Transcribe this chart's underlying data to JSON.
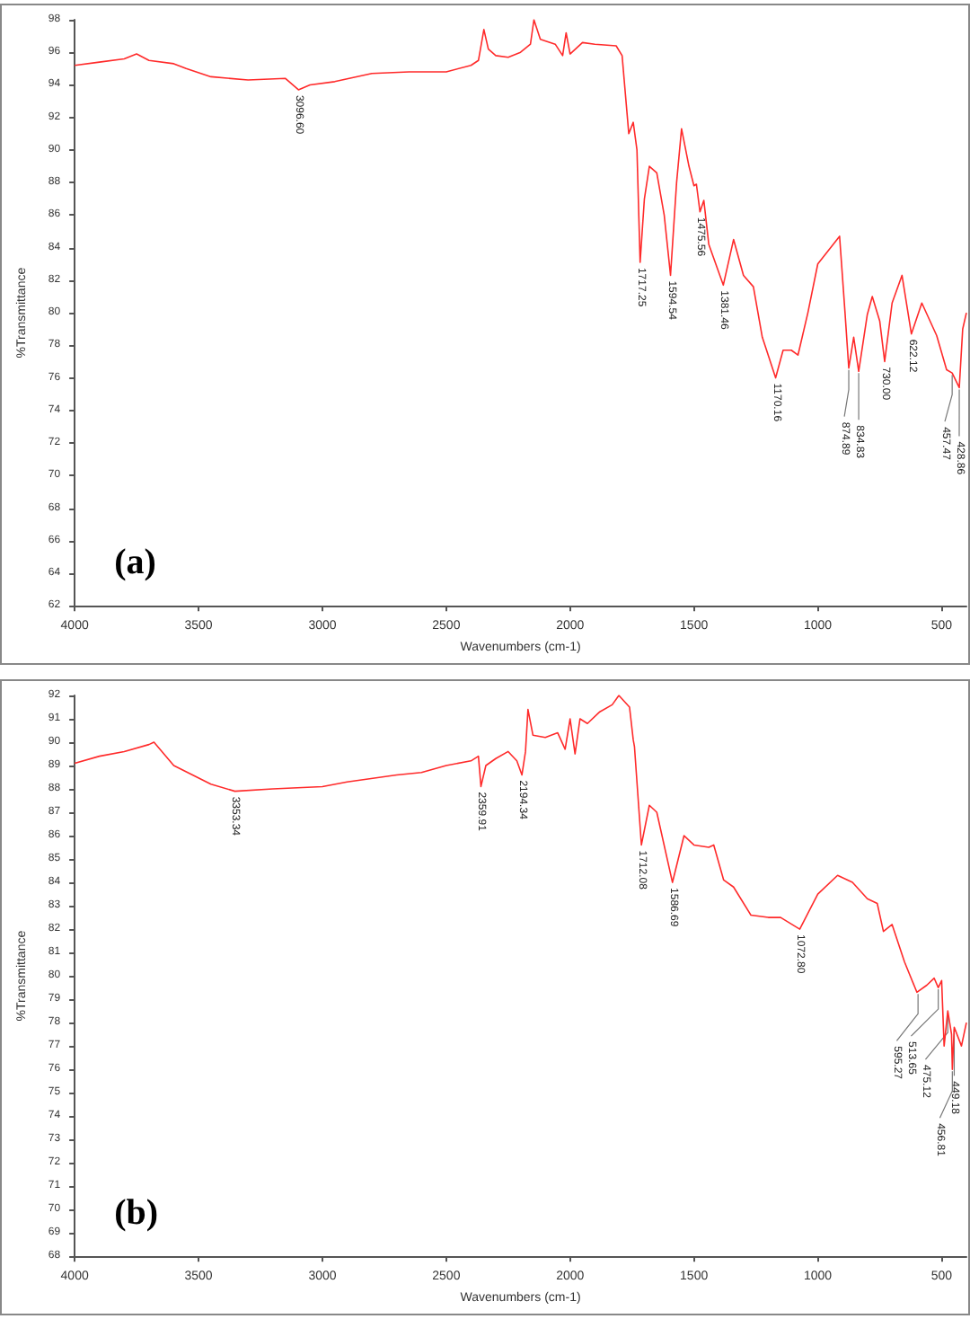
{
  "chart_data": [
    {
      "type": "line",
      "title": "(a)",
      "xlabel": "Wavenumbers (cm-1)",
      "ylabel": "%Transmittance",
      "xlim": [
        4000,
        400
      ],
      "xticks": [
        4000,
        3500,
        3000,
        2500,
        2000,
        1500,
        1000,
        500
      ],
      "ylim": [
        62,
        98
      ],
      "yticks": [
        62,
        64,
        66,
        68,
        70,
        72,
        74,
        76,
        78,
        80,
        82,
        84,
        86,
        88,
        90,
        92,
        94,
        96,
        98
      ],
      "grid": false,
      "marker": "none",
      "line_style": "solid",
      "series": [
        {
          "color": "#ff2a2a",
          "x": [
            4000,
            3900,
            3800,
            3750,
            3700,
            3600,
            3550,
            3450,
            3300,
            3150,
            3096.6,
            3050,
            2950,
            2800,
            2650,
            2500,
            2400,
            2370,
            2348,
            2330,
            2300,
            2250,
            2200,
            2160,
            2146,
            2120,
            2060,
            2030,
            2016,
            2000,
            1950,
            1900,
            1814,
            1790,
            1763,
            1745,
            1730,
            1717.25,
            1700,
            1680,
            1650,
            1620,
            1594.54,
            1570,
            1550,
            1520,
            1500,
            1490,
            1475.56,
            1460,
            1440,
            1381.46,
            1340,
            1300,
            1260,
            1224,
            1170.16,
            1140,
            1107,
            1080,
            1040,
            1000,
            912,
            890,
            874.89,
            855,
            834.83,
            800,
            780,
            750,
            730,
            700,
            660,
            622.12,
            580,
            520,
            480,
            457.47,
            428.86,
            415,
            400
          ],
          "values": [
            95.2,
            95.4,
            95.6,
            95.9,
            95.5,
            95.3,
            95.0,
            94.5,
            94.3,
            94.4,
            93.7,
            94.0,
            94.2,
            94.7,
            94.8,
            94.8,
            95.2,
            95.5,
            97.4,
            96.2,
            95.8,
            95.7,
            96.0,
            96.5,
            98.0,
            96.8,
            96.5,
            95.8,
            97.2,
            95.9,
            96.6,
            96.5,
            96.4,
            95.8,
            91.0,
            91.7,
            90.0,
            83.1,
            87.0,
            89.0,
            88.6,
            86.0,
            82.3,
            88.0,
            91.3,
            89.0,
            87.8,
            87.9,
            86.2,
            86.9,
            84.2,
            81.7,
            84.5,
            82.3,
            81.6,
            78.5,
            76.0,
            77.7,
            77.7,
            77.4,
            80.0,
            83.0,
            84.7,
            80.0,
            76.6,
            78.5,
            76.4,
            79.9,
            81.0,
            79.5,
            77.0,
            80.6,
            82.3,
            78.7,
            80.6,
            78.6,
            76.5,
            76.3,
            75.4,
            79.0,
            80.0
          ]
        }
      ],
      "annotations": [
        {
          "text": "3096.60",
          "x": 3096.6,
          "y": 93.7
        },
        {
          "text": "1717.25",
          "x": 1717.25,
          "y": 83.1
        },
        {
          "text": "1594.54",
          "x": 1594.54,
          "y": 82.3
        },
        {
          "text": "1475.56",
          "x": 1475.56,
          "y": 86.2
        },
        {
          "text": "1381.46",
          "x": 1381.46,
          "y": 81.7
        },
        {
          "text": "1170.16",
          "x": 1170.16,
          "y": 76.0
        },
        {
          "text": "874.89",
          "x": 874.89,
          "y": 76.6
        },
        {
          "text": "834.83",
          "x": 834.83,
          "y": 76.4
        },
        {
          "text": "730.00",
          "x": 730.0,
          "y": 77.0
        },
        {
          "text": "622.12",
          "x": 622.12,
          "y": 78.7
        },
        {
          "text": "457.47",
          "x": 457.47,
          "y": 76.3
        },
        {
          "text": "428.86",
          "x": 428.86,
          "y": 75.4
        }
      ]
    },
    {
      "type": "line",
      "title": "(b)",
      "xlabel": "Wavenumbers (cm-1)",
      "ylabel": "%Transmittance",
      "xlim": [
        4000,
        400
      ],
      "xticks": [
        4000,
        3500,
        3000,
        2500,
        2000,
        1500,
        1000,
        500
      ],
      "ylim": [
        68,
        92
      ],
      "yticks": [
        68,
        69,
        70,
        71,
        72,
        73,
        74,
        75,
        76,
        77,
        78,
        79,
        80,
        81,
        82,
        83,
        84,
        85,
        86,
        87,
        88,
        89,
        90,
        91,
        92
      ],
      "grid": false,
      "marker": "none",
      "line_style": "solid",
      "series": [
        {
          "color": "#ff2a2a",
          "x": [
            4000,
            3900,
            3800,
            3700,
            3680,
            3600,
            3450,
            3353.34,
            3200,
            3000,
            2900,
            2700,
            2600,
            2500,
            2400,
            2370,
            2359.91,
            2340,
            2300,
            2250,
            2215,
            2194.34,
            2180,
            2170,
            2150,
            2100,
            2050,
            2020,
            2000,
            1980,
            1960,
            1930,
            1880,
            1830,
            1803,
            1760,
            1745,
            1740,
            1712.08,
            1680,
            1650,
            1586.69,
            1540,
            1500,
            1440,
            1420,
            1380,
            1340,
            1270,
            1200,
            1150,
            1072.8,
            1000,
            920,
            860,
            800,
            760,
            735,
            700,
            650,
            600,
            595.27,
            560,
            530,
            513.65,
            500,
            490,
            475.12,
            460,
            456.81,
            449.18,
            420,
            400
          ],
          "values": [
            89.1,
            89.4,
            89.6,
            89.9,
            90.0,
            89.0,
            88.2,
            87.9,
            88.0,
            88.1,
            88.3,
            88.6,
            88.7,
            89.0,
            89.2,
            89.4,
            88.1,
            89.0,
            89.3,
            89.6,
            89.2,
            88.6,
            89.6,
            91.4,
            90.3,
            90.2,
            90.4,
            89.7,
            91.0,
            89.5,
            91.0,
            90.8,
            91.3,
            91.6,
            92.0,
            91.5,
            90.1,
            89.8,
            85.6,
            87.3,
            87.0,
            84.0,
            86.0,
            85.6,
            85.5,
            85.6,
            84.1,
            83.8,
            82.6,
            82.5,
            82.5,
            82.0,
            83.5,
            84.3,
            84.0,
            83.3,
            83.1,
            81.9,
            82.2,
            80.6,
            79.3,
            79.3,
            79.6,
            79.9,
            79.5,
            79.8,
            77.0,
            78.5,
            77.5,
            76.0,
            77.8,
            77.0,
            78.0
          ]
        }
      ],
      "annotations": [
        {
          "text": "3353.34",
          "x": 3353.34,
          "y": 87.9
        },
        {
          "text": "2359.91",
          "x": 2359.91,
          "y": 88.1
        },
        {
          "text": "2194.34",
          "x": 2194.34,
          "y": 88.6
        },
        {
          "text": "1712.08",
          "x": 1712.08,
          "y": 85.6
        },
        {
          "text": "1586.69",
          "x": 1586.69,
          "y": 84.0
        },
        {
          "text": "1072.80",
          "x": 1072.8,
          "y": 82.0
        },
        {
          "text": "595.27",
          "x": 595.27,
          "y": 79.3
        },
        {
          "text": "513.65",
          "x": 513.65,
          "y": 79.5
        },
        {
          "text": "475.12",
          "x": 475.12,
          "y": 78.5
        },
        {
          "text": "456.81",
          "x": 456.81,
          "y": 76.0
        },
        {
          "text": "449.18",
          "x": 449.18,
          "y": 77.8
        }
      ]
    }
  ]
}
